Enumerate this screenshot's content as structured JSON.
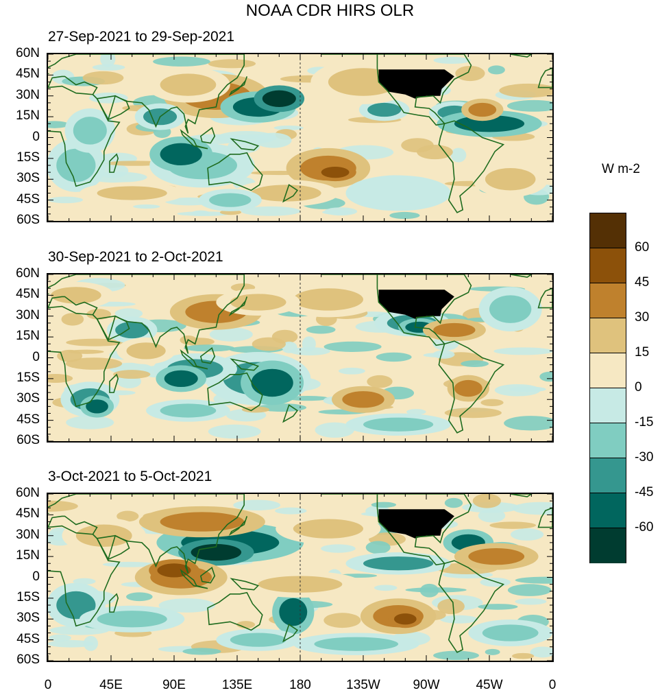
{
  "title": "NOAA CDR HIRS OLR",
  "units": "W m-2",
  "panels": [
    {
      "label": "27-Sep-2021 to 29-Sep-2021"
    },
    {
      "label": "30-Sep-2021 to 2-Oct-2021"
    },
    {
      "label": "3-Oct-2021 to 5-Oct-2021"
    }
  ],
  "lat_labels": [
    "60N",
    "45N",
    "30N",
    "15N",
    "0",
    "15S",
    "30S",
    "45S",
    "60S"
  ],
  "lon_labels": [
    "0",
    "45E",
    "90E",
    "135E",
    "180",
    "135W",
    "90W",
    "45W",
    "0"
  ],
  "colorbar": {
    "colors": [
      "#543005",
      "#8c510a",
      "#bf812d",
      "#dfc27d",
      "#f6e8c3",
      "#c7eae5",
      "#80cdc1",
      "#35978f",
      "#01665e",
      "#003c30"
    ],
    "labels": [
      "60",
      "45",
      "30",
      "15",
      "0",
      "-15",
      "-30",
      "-45",
      "-60"
    ]
  },
  "map_colors": {
    "land_outline": "#1e6b1e",
    "dateline": "#333333"
  }
}
